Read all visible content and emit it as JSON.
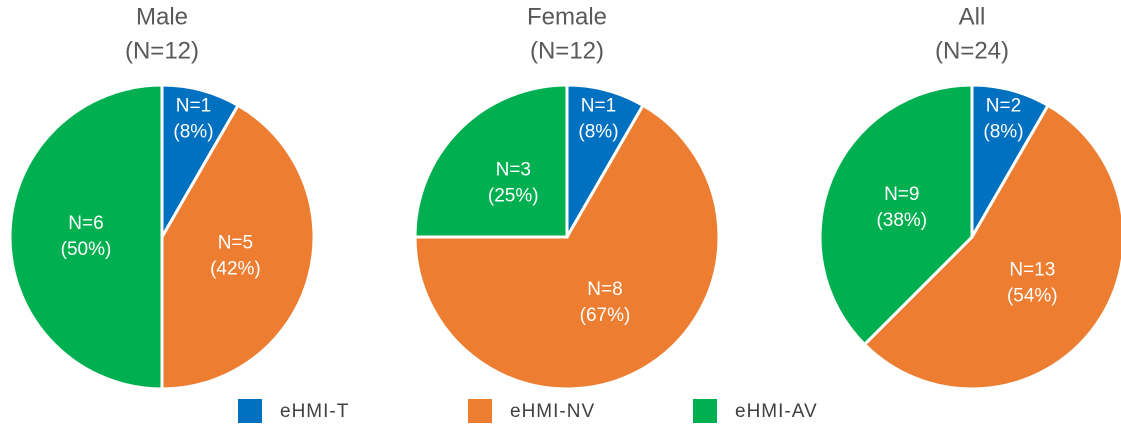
{
  "chart_data": [
    {
      "type": "pie",
      "title": "Male",
      "subtitle": "(N=12)",
      "categories": [
        "eHMI-T",
        "eHMI-NV",
        "eHMI-AV"
      ],
      "colors": [
        "#0070c0",
        "#ed7d31",
        "#00b050"
      ],
      "values": [
        1,
        5,
        6
      ],
      "value_labels": [
        "N=1",
        "N=5",
        "N=6"
      ],
      "percent_labels": [
        "(8%)",
        "(42%)",
        "(50%)"
      ]
    },
    {
      "type": "pie",
      "title": "Female",
      "subtitle": "(N=12)",
      "categories": [
        "eHMI-T",
        "eHMI-NV",
        "eHMI-AV"
      ],
      "colors": [
        "#0070c0",
        "#ed7d31",
        "#00b050"
      ],
      "values": [
        1,
        8,
        3
      ],
      "value_labels": [
        "N=1",
        "N=8",
        "N=3"
      ],
      "percent_labels": [
        "(8%)",
        "(67%)",
        "(25%)"
      ]
    },
    {
      "type": "pie",
      "title": "All",
      "subtitle": "(N=24)",
      "categories": [
        "eHMI-T",
        "eHMI-NV",
        "eHMI-AV"
      ],
      "colors": [
        "#0070c0",
        "#ed7d31",
        "#00b050"
      ],
      "values": [
        2,
        13,
        9
      ],
      "value_labels": [
        "N=2",
        "N=13",
        "N=9"
      ],
      "percent_labels": [
        "(8%)",
        "(54%)",
        "(38%)"
      ]
    }
  ]
}
